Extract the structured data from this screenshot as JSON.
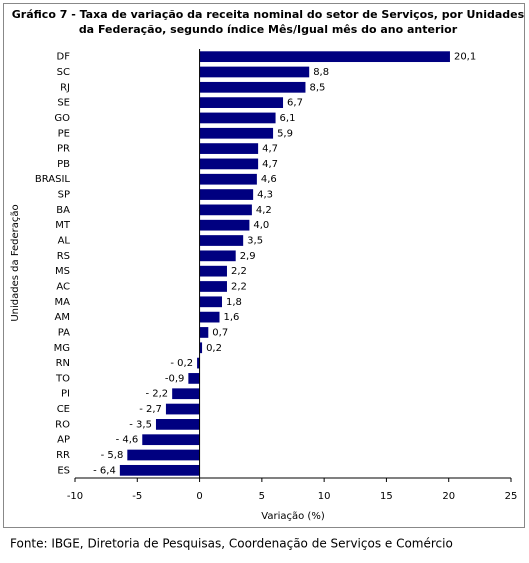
{
  "chart_data": {
    "type": "hbar",
    "title": [
      "Gráfico 7 - Taxa de variação da receita nominal do setor de Serviços, por Unidades",
      "da Federação, segundo índice Mês/Igual mês do ano anterior"
    ],
    "x_label": "Variação (%)",
    "y_label": "Unidades da Federação",
    "categories": [
      "DF",
      "SC",
      "RJ",
      "SE",
      "GO",
      "PE",
      "PR",
      "PB",
      "BRASIL",
      "SP",
      "BA",
      "MT",
      "AL",
      "RS",
      "MS",
      "AC",
      "MA",
      "AM",
      "PA",
      "MG",
      "RN",
      "TO",
      "PI",
      "CE",
      "RO",
      "AP",
      "RR",
      "ES"
    ],
    "values": [
      20.1,
      8.8,
      8.5,
      6.7,
      6.1,
      5.9,
      4.7,
      4.7,
      4.6,
      4.3,
      4.2,
      4.0,
      3.5,
      2.9,
      2.2,
      2.2,
      1.8,
      1.6,
      0.7,
      0.2,
      -0.2,
      -0.9,
      -2.2,
      -2.7,
      -3.5,
      -4.6,
      -5.8,
      -6.4
    ],
    "value_labels": [
      "20,1",
      "8,8",
      "8,5",
      "6,7",
      "6,1",
      "5,9",
      "4,7",
      "4,7",
      "4,6",
      "4,3",
      "4,2",
      "4,0",
      "3,5",
      "2,9",
      "2,2",
      "2,2",
      "1,8",
      "1,6",
      "0,7",
      "0,2",
      "- 0,2",
      "-0,9",
      "- 2,2",
      "- 2,7",
      "- 3,5",
      "- 4,6",
      "- 5,8",
      "- 6,4"
    ],
    "color": "#000080",
    "xlim": [
      -10,
      25
    ],
    "xticks": [
      -10,
      -5,
      0,
      5,
      10,
      15,
      20,
      25
    ],
    "grid": false
  },
  "source": "Fonte: IBGE, Diretoria de Pesquisas, Coordenação de Serviços e Comércio"
}
